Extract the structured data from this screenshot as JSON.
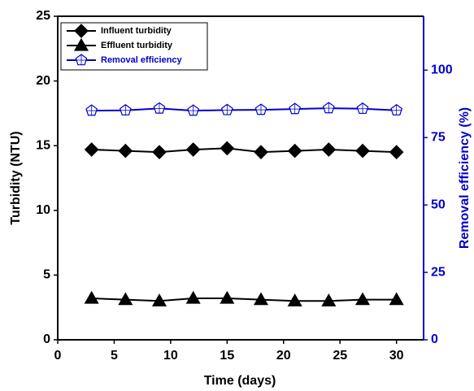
{
  "chart_data": {
    "type": "line",
    "x_label": "Time (days)",
    "y_label": "Turbidity (NTU)",
    "y2_label": "Removal efficiency (%)",
    "x": [
      3,
      6,
      9,
      12,
      15,
      18,
      21,
      24,
      27,
      30
    ],
    "xlim": [
      0,
      32.4
    ],
    "xticks": [
      0,
      5,
      10,
      15,
      20,
      25,
      30
    ],
    "ylim": [
      0,
      25
    ],
    "yticks": [
      0,
      5,
      10,
      15,
      20,
      25
    ],
    "y2lim": [
      0,
      120
    ],
    "y2ticks": [
      0,
      25,
      50,
      75,
      100
    ],
    "y2_color": "#0000cc",
    "legend": "top-left",
    "series": [
      {
        "name": "Influent turbidity",
        "color": "#000000",
        "marker": "diamond",
        "values": [
          14.7,
          14.6,
          14.5,
          14.7,
          14.8,
          14.5,
          14.6,
          14.7,
          14.6,
          14.5
        ]
      },
      {
        "name": "Effluent turbidity",
        "color": "#000000",
        "marker": "triangle",
        "values": [
          3.2,
          3.1,
          3.0,
          3.2,
          3.2,
          3.1,
          3.0,
          3.0,
          3.1,
          3.1
        ]
      },
      {
        "name": "Removal efficiency",
        "color": "#0000cc",
        "marker": "pentagon",
        "axis": "y2",
        "values": [
          85.0,
          85.1,
          85.8,
          85.0,
          85.2,
          85.3,
          85.6,
          85.9,
          85.7,
          85.1
        ]
      }
    ]
  }
}
